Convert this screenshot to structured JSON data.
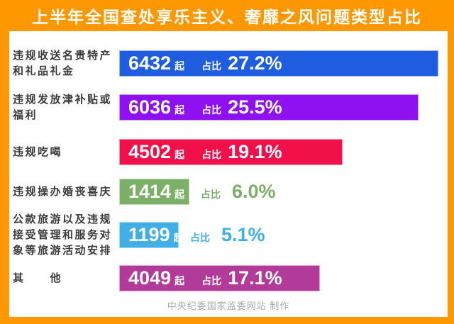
{
  "title": "上半年全国查处享乐主义、奢靡之风问题类型占比",
  "footer": "中央纪委国家监委网站 制作",
  "ui": {
    "count_suffix": "起",
    "share_label": "占比"
  },
  "colors": {
    "frame_orange": "#ff9800",
    "panel_white": "#ffffff",
    "label_text": "#3b3b3b",
    "bar_text": "#ffffff",
    "footer_text": "#a8a8a8"
  },
  "chart_data": {
    "type": "bar",
    "orientation": "horizontal",
    "title": "上半年全国查处享乐主义、奢靡之风问题类型占比",
    "unit": "起",
    "value_axis_note": "bar length proportional to value; max value 6432 spans full width",
    "items": [
      {
        "label": "违规收送名贵特产\n和礼品礼金",
        "value": 6432,
        "share": "27.2%",
        "color": "#1f5de0",
        "share_inside": true
      },
      {
        "label": "违规发放津补贴或\n福利",
        "value": 6036,
        "share": "25.5%",
        "color": "#8f11f2",
        "share_inside": true
      },
      {
        "label": "违规吃喝",
        "value": 4502,
        "share": "19.1%",
        "color": "#f2104a",
        "share_inside": true
      },
      {
        "label": "违规操办婚丧喜庆",
        "value": 1414,
        "share": "6.0%",
        "color": "#7caf68",
        "share_inside": false
      },
      {
        "label": "公款旅游以及违规\n接受管理和服务对\n象等旅游活动安排",
        "value": 1199,
        "share": "5.1%",
        "color": "#41aee8",
        "share_inside": false
      },
      {
        "label": "其　　他",
        "value": 4049,
        "share": "17.1%",
        "color": "#b23a99",
        "share_inside": true
      }
    ]
  }
}
